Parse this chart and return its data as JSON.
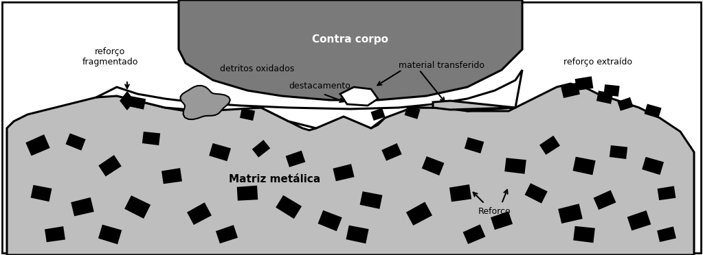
{
  "background_color": "#ffffff",
  "contra_corpo_color": "#7a7a7a",
  "matrix_color": "#bebebe",
  "white": "#ffffff",
  "outline_color": "#000000",
  "detritos_color": "#999999",
  "wedge_color": "#bebebe",
  "labels": {
    "contra_corpo": "Contra corpo",
    "reforco_fragmentado": "reforço\nfragmentado",
    "detritos_oxidados": "detritos oxidados",
    "destacamento": "destacamento",
    "material_transferido": "material transferido",
    "reforco_extraido": "reforço extraído",
    "matriz_metalica": "Matriz metálica",
    "reforco": "Reforço"
  },
  "figsize": [
    10.23,
    3.72
  ],
  "dpi": 100
}
